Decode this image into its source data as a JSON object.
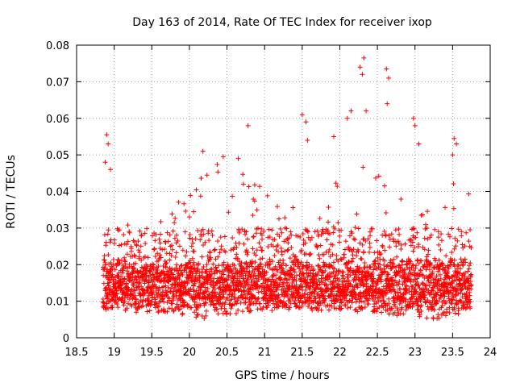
{
  "chart_data": {
    "type": "scatter",
    "title": "Day 163 of 2014, Rate Of TEC Index for receiver ixop",
    "xlabel": "GPS time / hours",
    "ylabel": "ROTI / TECUs",
    "xlim": [
      18.5,
      24
    ],
    "ylim": [
      0,
      0.08
    ],
    "xticks": [
      18.5,
      19,
      19.5,
      20,
      20.5,
      21,
      21.5,
      22,
      22.5,
      23,
      23.5,
      24
    ],
    "xtick_labels": [
      "18.5",
      "19",
      "19.5",
      "20",
      "20.5",
      "21",
      "21.5",
      "22",
      "22.5",
      "23",
      "23.5",
      "24"
    ],
    "yticks": [
      0,
      0.01,
      0.02,
      0.03,
      0.04,
      0.05,
      0.06,
      0.07,
      0.08
    ],
    "ytick_labels": [
      "0",
      "0.01",
      "0.02",
      "0.03",
      "0.04",
      "0.05",
      "0.06",
      "0.07",
      "0.08"
    ],
    "grid": true,
    "marker": "+",
    "color": "#ff0000",
    "series": [
      {
        "name": "ROTI",
        "note": "dense cloud of '+' markers between x=18.85 and x=23.75; baseline ~0.005-0.02 with spikes",
        "x_range": [
          18.85,
          23.75
        ],
        "approx_point_count": 3200,
        "envelope_x": [
          18.85,
          19.0,
          19.25,
          19.5,
          19.75,
          20.0,
          20.25,
          20.5,
          20.75,
          21.0,
          21.25,
          21.5,
          21.75,
          22.0,
          22.25,
          22.5,
          22.75,
          23.0,
          23.25,
          23.5,
          23.75
        ],
        "envelope_upper": [
          0.035,
          0.03,
          0.034,
          0.029,
          0.035,
          0.04,
          0.05,
          0.049,
          0.045,
          0.042,
          0.04,
          0.04,
          0.043,
          0.045,
          0.05,
          0.048,
          0.038,
          0.045,
          0.03,
          0.045,
          0.04
        ],
        "envelope_lower": [
          0.008,
          0.007,
          0.007,
          0.007,
          0.007,
          0.006,
          0.005,
          0.006,
          0.007,
          0.008,
          0.008,
          0.007,
          0.008,
          0.008,
          0.007,
          0.007,
          0.006,
          0.006,
          0.005,
          0.006,
          0.007
        ],
        "spikes": [
          {
            "x": 18.9,
            "y": 0.0555
          },
          {
            "x": 18.92,
            "y": 0.053
          },
          {
            "x": 18.88,
            "y": 0.048
          },
          {
            "x": 18.95,
            "y": 0.046
          },
          {
            "x": 20.18,
            "y": 0.051
          },
          {
            "x": 20.45,
            "y": 0.0495
          },
          {
            "x": 20.65,
            "y": 0.049
          },
          {
            "x": 20.78,
            "y": 0.058
          },
          {
            "x": 21.5,
            "y": 0.061
          },
          {
            "x": 21.55,
            "y": 0.059
          },
          {
            "x": 21.57,
            "y": 0.054
          },
          {
            "x": 21.92,
            "y": 0.055
          },
          {
            "x": 22.1,
            "y": 0.06
          },
          {
            "x": 22.15,
            "y": 0.062
          },
          {
            "x": 22.27,
            "y": 0.074
          },
          {
            "x": 22.3,
            "y": 0.072
          },
          {
            "x": 22.32,
            "y": 0.0765
          },
          {
            "x": 22.35,
            "y": 0.062
          },
          {
            "x": 22.62,
            "y": 0.0735
          },
          {
            "x": 22.65,
            "y": 0.071
          },
          {
            "x": 22.63,
            "y": 0.064
          },
          {
            "x": 22.98,
            "y": 0.06
          },
          {
            "x": 23.0,
            "y": 0.058
          },
          {
            "x": 23.05,
            "y": 0.053
          },
          {
            "x": 23.52,
            "y": 0.0545
          },
          {
            "x": 23.55,
            "y": 0.053
          },
          {
            "x": 23.5,
            "y": 0.05
          }
        ]
      }
    ]
  }
}
